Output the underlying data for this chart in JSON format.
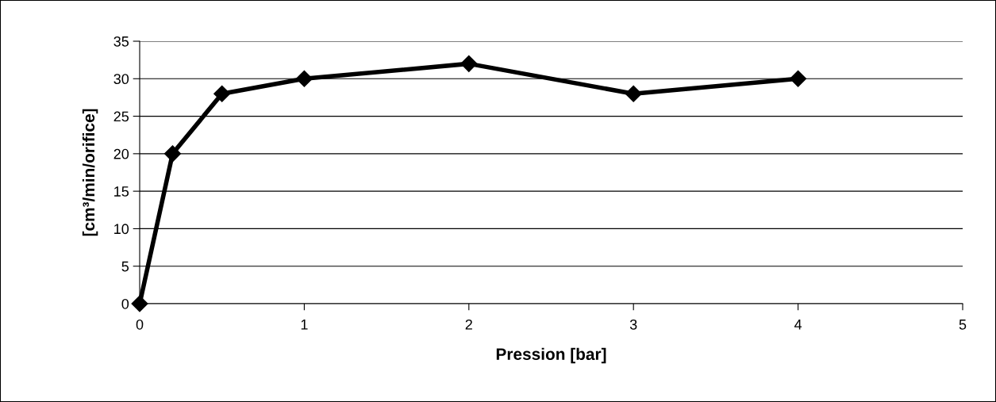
{
  "chart_data": {
    "type": "line",
    "xlabel": "Pression [bar]",
    "ylabel": "[cm³/min/orifice]",
    "x": [
      0,
      0.2,
      0.5,
      1,
      2,
      3,
      4
    ],
    "series": [
      {
        "color": "#000000",
        "values": [
          0,
          20,
          28,
          30,
          32,
          28,
          30
        ]
      }
    ],
    "xlim": [
      0,
      5
    ],
    "xticks": [
      0,
      1,
      2,
      3,
      4,
      5
    ],
    "ylim": [
      0,
      35
    ],
    "yticks": [
      0,
      5,
      10,
      15,
      20,
      25,
      30,
      35
    ],
    "grid": "y",
    "legend": false,
    "marker": "diamond",
    "line_style": "solid"
  }
}
